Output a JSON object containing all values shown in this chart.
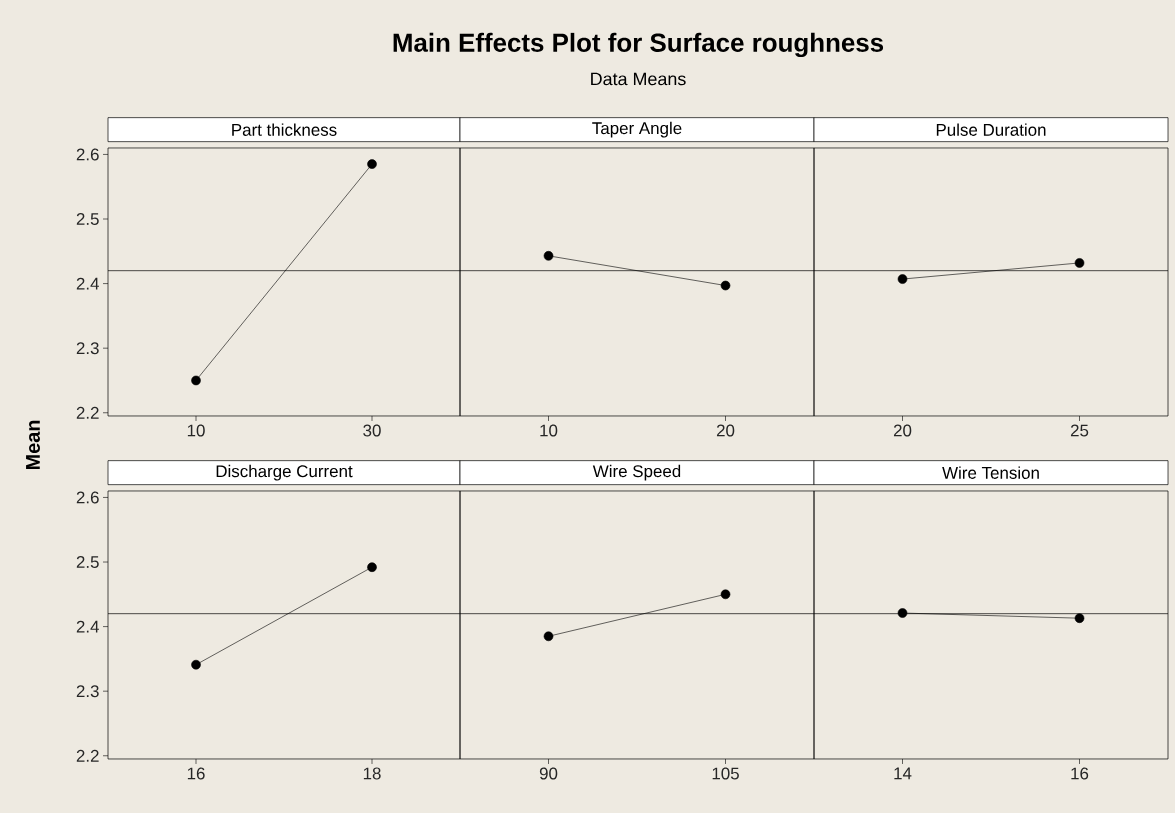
{
  "chart_data": [
    {
      "type": "other",
      "title": "Main Effects Plot for Surface roughness",
      "subtitle": "Data Means",
      "ylabel": "Mean"
    },
    {
      "type": "line",
      "title": "Part thickness",
      "categories": [
        "10",
        "30"
      ],
      "values": [
        2.25,
        2.585
      ],
      "color": "#000000",
      "marker": "circle",
      "line_style": "solid",
      "ylim": [
        2.195,
        2.61
      ],
      "yticks": [
        2.2,
        2.3,
        2.4,
        2.5,
        2.6
      ],
      "ref_lines": [
        {
          "axis": "y",
          "value": 2.42
        }
      ]
    },
    {
      "type": "line",
      "title": "Taper Angle",
      "categories": [
        "10",
        "20"
      ],
      "values": [
        2.443,
        2.397
      ],
      "color": "#000000",
      "marker": "circle",
      "line_style": "solid",
      "ylim": [
        2.195,
        2.61
      ],
      "tick_labels": "x",
      "ref_lines": [
        {
          "axis": "y",
          "value": 2.42
        }
      ]
    },
    {
      "type": "line",
      "title": "Pulse Duration",
      "categories": [
        "20",
        "25"
      ],
      "values": [
        2.407,
        2.432
      ],
      "color": "#000000",
      "marker": "circle",
      "line_style": "solid",
      "ylim": [
        2.195,
        2.61
      ],
      "tick_labels": "x",
      "ref_lines": [
        {
          "axis": "y",
          "value": 2.42
        }
      ]
    },
    {
      "type": "line",
      "title": "Discharge Current",
      "categories": [
        "16",
        "18"
      ],
      "values": [
        2.341,
        2.492
      ],
      "color": "#000000",
      "marker": "circle",
      "line_style": "solid",
      "ylim": [
        2.195,
        2.61
      ],
      "yticks": [
        2.2,
        2.3,
        2.4,
        2.5,
        2.6
      ],
      "ref_lines": [
        {
          "axis": "y",
          "value": 2.42
        }
      ]
    },
    {
      "type": "line",
      "title": "Wire Speed",
      "categories": [
        "90",
        "105"
      ],
      "values": [
        2.385,
        2.45
      ],
      "color": "#000000",
      "marker": "circle",
      "line_style": "solid",
      "ylim": [
        2.195,
        2.61
      ],
      "tick_labels": "x",
      "ref_lines": [
        {
          "axis": "y",
          "value": 2.42
        }
      ]
    },
    {
      "type": "line",
      "title": "Wire Tension",
      "categories": [
        "14",
        "16"
      ],
      "values": [
        2.421,
        2.413
      ],
      "color": "#000000",
      "marker": "circle",
      "line_style": "solid",
      "ylim": [
        2.195,
        2.61
      ],
      "tick_labels": "x",
      "ref_lines": [
        {
          "axis": "y",
          "value": 2.42
        }
      ]
    }
  ]
}
